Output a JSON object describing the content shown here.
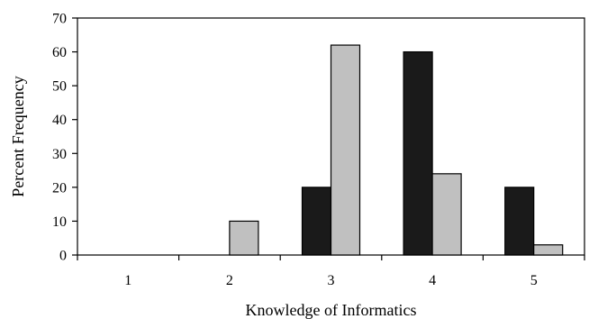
{
  "chart_data": {
    "type": "bar",
    "xlabel": "Knowledge of Informatics",
    "ylabel": "Percent Frequency",
    "categories": [
      "1",
      "2",
      "3",
      "4",
      "5"
    ],
    "ylim": [
      0,
      70
    ],
    "yticks": [
      "0",
      "10",
      "20",
      "30",
      "40",
      "50",
      "60",
      "70"
    ],
    "grid": false,
    "legend": "none",
    "series": [
      {
        "color": "#1a1a1a",
        "values": [
          0,
          0,
          20,
          60,
          20
        ]
      },
      {
        "color": "#c0c0c0",
        "values": [
          0,
          10,
          62,
          24,
          3
        ]
      }
    ]
  }
}
